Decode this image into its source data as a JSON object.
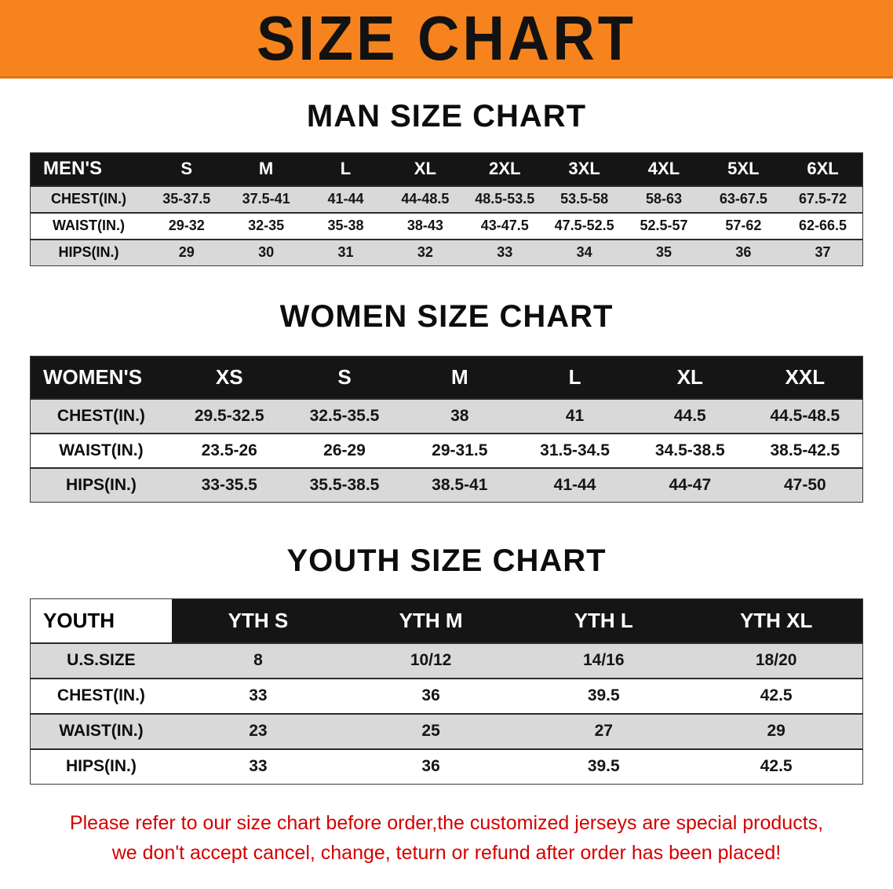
{
  "banner": {
    "title": "SIZE CHART"
  },
  "sections": [
    {
      "id": "men",
      "heading": "MAN SIZE CHART",
      "table": {
        "header": [
          "MEN'S",
          "S",
          "M",
          "L",
          "XL",
          "2XL",
          "3XL",
          "4XL",
          "5XL",
          "6XL"
        ],
        "rows": [
          [
            "CHEST(IN.)",
            "35-37.5",
            "37.5-41",
            "41-44",
            "44-48.5",
            "48.5-53.5",
            "53.5-58",
            "58-63",
            "63-67.5",
            "67.5-72"
          ],
          [
            "WAIST(IN.)",
            "29-32",
            "32-35",
            "35-38",
            "38-43",
            "43-47.5",
            "47.5-52.5",
            "52.5-57",
            "57-62",
            "62-66.5"
          ],
          [
            "HIPS(IN.)",
            "29",
            "30",
            "31",
            "32",
            "33",
            "34",
            "35",
            "36",
            "37"
          ]
        ]
      }
    },
    {
      "id": "women",
      "heading": "WOMEN SIZE CHART",
      "table": {
        "header": [
          "WOMEN'S",
          "XS",
          "S",
          "M",
          "L",
          "XL",
          "XXL"
        ],
        "rows": [
          [
            "CHEST(IN.)",
            "29.5-32.5",
            "32.5-35.5",
            "38",
            "41",
            "44.5",
            "44.5-48.5"
          ],
          [
            "WAIST(IN.)",
            "23.5-26",
            "26-29",
            "29-31.5",
            "31.5-34.5",
            "34.5-38.5",
            "38.5-42.5"
          ],
          [
            "HIPS(IN.)",
            "33-35.5",
            "35.5-38.5",
            "38.5-41",
            "41-44",
            "44-47",
            "47-50"
          ]
        ]
      }
    },
    {
      "id": "youth",
      "heading": "YOUTH SIZE CHART",
      "table": {
        "header": [
          "YOUTH",
          "YTH S",
          "YTH M",
          "YTH L",
          "YTH XL"
        ],
        "rows": [
          [
            "U.S.SIZE",
            "8",
            "10/12",
            "14/16",
            "18/20"
          ],
          [
            "CHEST(IN.)",
            "33",
            "36",
            "39.5",
            "42.5"
          ],
          [
            "WAIST(IN.)",
            "23",
            "25",
            "27",
            "29"
          ],
          [
            "HIPS(IN.)",
            "33",
            "36",
            "39.5",
            "42.5"
          ]
        ]
      }
    }
  ],
  "footer": {
    "line1": "Please refer to our size chart before order,the customized jerseys are special products,",
    "line2": "we don't accept cancel, change, teturn or refund after order has been placed!"
  },
  "colors": {
    "banner-bg": "#f6831d",
    "header-bar": "#151515",
    "row-alt": "#d9d9d9",
    "footer-red": "#d40000"
  }
}
